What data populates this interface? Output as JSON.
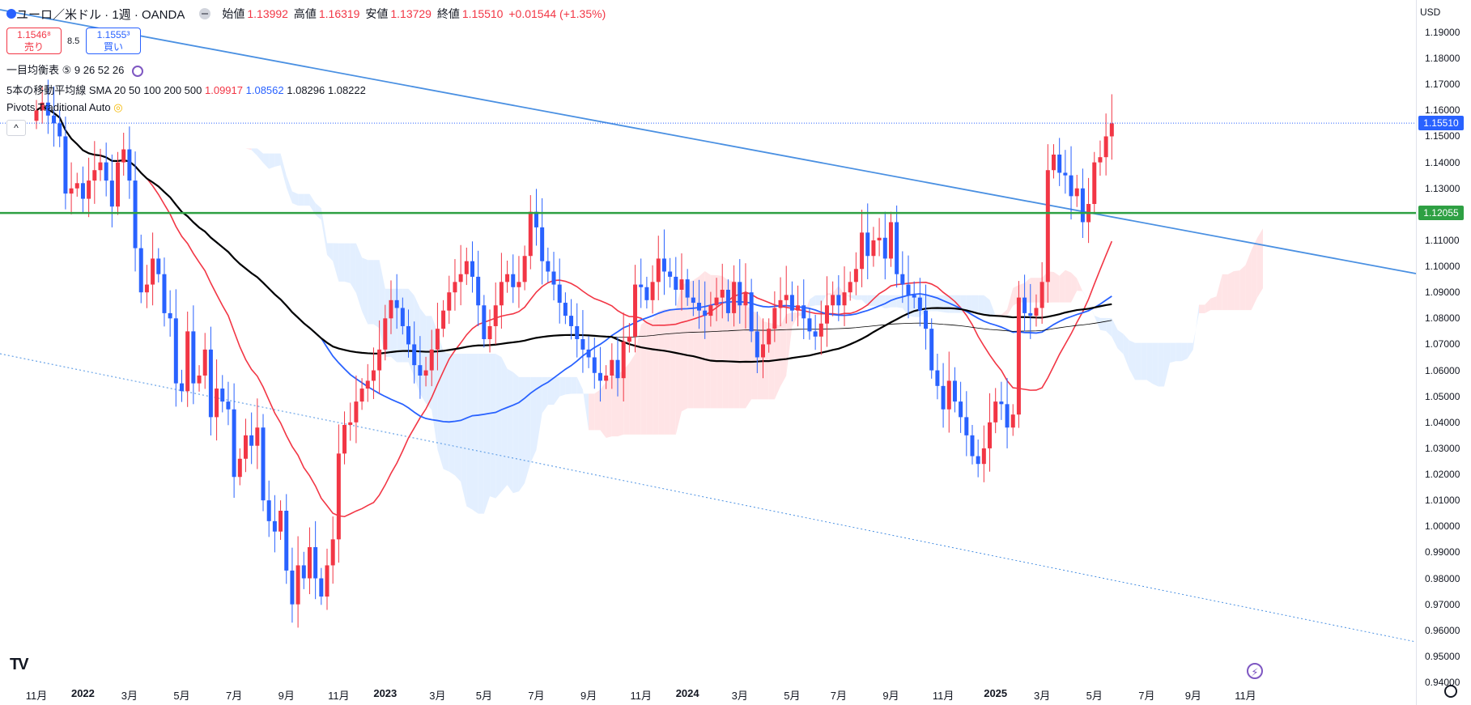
{
  "header": {
    "symbol": "ユーロ／米ドル · 1週 · OANDA",
    "open_label": "始値",
    "open": "1.13992",
    "high_label": "高値",
    "high": "1.16319",
    "low_label": "安値",
    "low": "1.13729",
    "close_label": "終値",
    "close": "1.15510",
    "change": "+0.01544 (+1.35%)"
  },
  "trade": {
    "sell_price": "1.1546⁸",
    "sell_label": "売り",
    "spread": "8.5",
    "buy_price": "1.1555³",
    "buy_label": "買い"
  },
  "indicators": {
    "ichimoku": "一目均衡表 ⑤ 9 26 52 26",
    "sma_label": "5本の移動平均線",
    "sma_params": "SMA 20 50 100 200 500",
    "sma_v1": "1.09917",
    "sma_v2": "1.08562",
    "sma_v3": "1.08296",
    "sma_v4": "1.08222",
    "pivot": "Pivots Traditional Auto"
  },
  "axis": {
    "currency": "USD",
    "current_price": "1.15510",
    "level_price": "1.12055",
    "collapse": "^",
    "logo": "TV",
    "flash": "⚡"
  },
  "colors": {
    "up": "#f23645",
    "down": "#2962ff",
    "sma20": "#f23645",
    "sma50": "#2962ff",
    "sma100": "#000000",
    "sma200": "#000000",
    "trend": "#4a90e2",
    "level": "#2ea043",
    "cloud_bull": "#ffe4e6",
    "cloud_bear": "#e3efff"
  },
  "chart_data": {
    "type": "candlestick",
    "ylim": [
      0.94,
      1.19
    ],
    "y_ticks": [
      "1.19000",
      "1.18000",
      "1.17000",
      "1.16000",
      "1.15000",
      "1.14000",
      "1.13000",
      "1.12000",
      "1.11000",
      "1.10000",
      "1.09000",
      "1.08000",
      "1.07000",
      "1.06000",
      "1.05000",
      "1.04000",
      "1.03000",
      "1.02000",
      "1.01000",
      "1.00000",
      "0.99000",
      "0.98000",
      "0.97000",
      "0.96000",
      "0.95000",
      "0.94000"
    ],
    "x_ticks": [
      {
        "label": "11月",
        "week": 0
      },
      {
        "label": "2022",
        "week": 8,
        "year": true
      },
      {
        "label": "3月",
        "week": 16
      },
      {
        "label": "5月",
        "week": 25
      },
      {
        "label": "7月",
        "week": 34
      },
      {
        "label": "9月",
        "week": 43
      },
      {
        "label": "11月",
        "week": 52
      },
      {
        "label": "2023",
        "week": 60,
        "year": true
      },
      {
        "label": "3月",
        "week": 69
      },
      {
        "label": "5月",
        "week": 77
      },
      {
        "label": "7月",
        "week": 86
      },
      {
        "label": "9月",
        "week": 95
      },
      {
        "label": "11月",
        "week": 104
      },
      {
        "label": "2024",
        "week": 112,
        "year": true
      },
      {
        "label": "3月",
        "week": 121
      },
      {
        "label": "5月",
        "week": 130
      },
      {
        "label": "7月",
        "week": 138
      },
      {
        "label": "9月",
        "week": 147
      },
      {
        "label": "11月",
        "week": 156
      },
      {
        "label": "2025",
        "week": 165,
        "year": true
      },
      {
        "label": "3月",
        "week": 173
      },
      {
        "label": "5月",
        "week": 182
      },
      {
        "label": "7月",
        "week": 191
      },
      {
        "label": "9月",
        "week": 199
      },
      {
        "label": "11月",
        "week": 208
      }
    ],
    "close": [
      1.16,
      1.163,
      1.158,
      1.155,
      1.15,
      1.128,
      1.13,
      1.132,
      1.126,
      1.133,
      1.137,
      1.14,
      1.133,
      1.123,
      1.14,
      1.145,
      1.133,
      1.107,
      1.09,
      1.093,
      1.103,
      1.097,
      1.082,
      1.08,
      1.055,
      1.052,
      1.075,
      1.055,
      1.058,
      1.068,
      1.042,
      1.053,
      1.048,
      1.045,
      1.019,
      1.026,
      1.035,
      1.031,
      1.038,
      1.01,
      1.002,
      0.998,
      1.006,
      0.983,
      0.97,
      0.985,
      0.98,
      0.992,
      0.98,
      0.973,
      0.985,
      0.995,
      1.028,
      1.039,
      1.04,
      1.048,
      1.053,
      1.056,
      1.06,
      1.068,
      1.08,
      1.087,
      1.084,
      1.077,
      1.07,
      1.062,
      1.058,
      1.06,
      1.068,
      1.076,
      1.083,
      1.09,
      1.094,
      1.097,
      1.102,
      1.096,
      1.085,
      1.072,
      1.077,
      1.085,
      1.094,
      1.097,
      1.092,
      1.094,
      1.104,
      1.121,
      1.115,
      1.102,
      1.098,
      1.093,
      1.086,
      1.081,
      1.077,
      1.072,
      1.068,
      1.065,
      1.059,
      1.056,
      1.058,
      1.064,
      1.057,
      1.071,
      1.073,
      1.093,
      1.092,
      1.087,
      1.094,
      1.103,
      1.098,
      1.096,
      1.091,
      1.095,
      1.088,
      1.086,
      1.083,
      1.081,
      1.085,
      1.088,
      1.091,
      1.082,
      1.094,
      1.085,
      1.09,
      1.075,
      1.065,
      1.07,
      1.076,
      1.084,
      1.087,
      1.089,
      1.083,
      1.085,
      1.08,
      1.075,
      1.073,
      1.078,
      1.085,
      1.089,
      1.085,
      1.09,
      1.094,
      1.099,
      1.113,
      1.104,
      1.11,
      1.111,
      1.103,
      1.117,
      1.097,
      1.093,
      1.089,
      1.088,
      1.083,
      1.076,
      1.06,
      1.054,
      1.045,
      1.056,
      1.048,
      1.042,
      1.035,
      1.027,
      1.024,
      1.03,
      1.04,
      1.048,
      1.047,
      1.038,
      1.043,
      1.088,
      1.082,
      1.081,
      1.084,
      1.094,
      1.137,
      1.143,
      1.136,
      1.135,
      1.127,
      1.13,
      1.117,
      1.124,
      1.14,
      1.142,
      1.15,
      1.155
    ],
    "series": [
      {
        "name": "SMA 20",
        "value": "1.09917"
      },
      {
        "name": "SMA 50",
        "value": "1.08562"
      },
      {
        "name": "SMA 100",
        "value": "1.08296"
      },
      {
        "name": "SMA 200",
        "value": "1.08222"
      }
    ],
    "horizontal_levels": [
      1.12055,
      1.1551
    ]
  }
}
